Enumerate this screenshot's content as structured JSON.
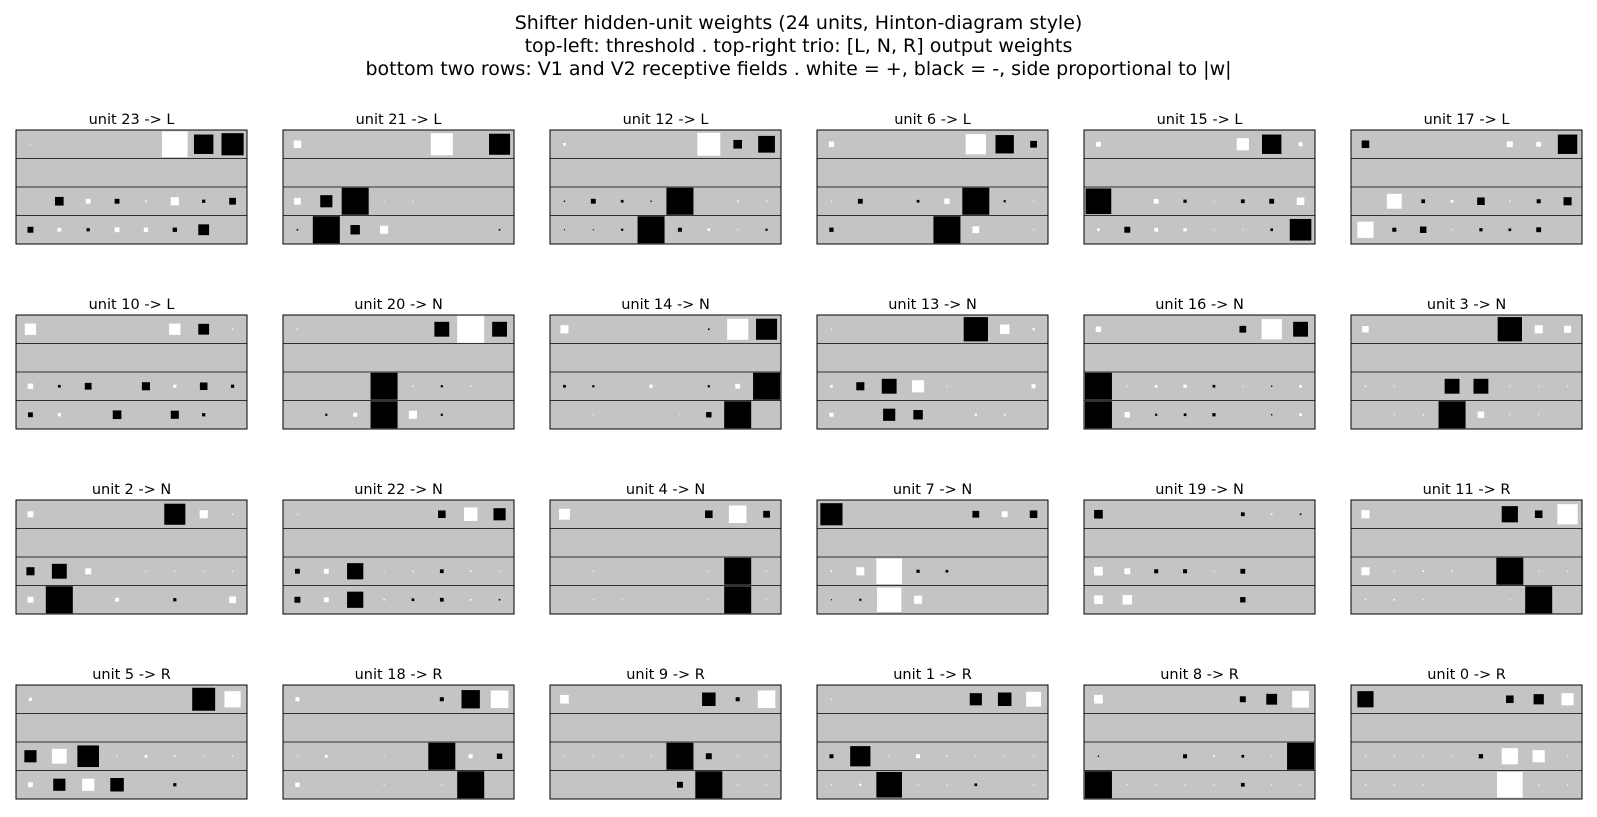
{
  "title_lines": [
    "Shifter hidden-unit weights (24 units, Hinton-diagram style)",
    "top-left: threshold   .   top-right trio: [L, N, R] output weights",
    "bottom two rows: V1 and V2 receptive fields   .   white = +, black = -, side proportional to |w|"
  ],
  "colors": {
    "panel_bg": "#c4c4c4",
    "positive": "#ffffff",
    "negative": "#000000",
    "frame": "#000000"
  },
  "chart_data": {
    "type": "hinton",
    "encoding": "value range -1..1; positive = white square, negative = black square; square side proportional to |w|; cells per row = 8",
    "panels": [
      {
        "title": "unit 23 -> L",
        "threshold": 0.04,
        "outputs": [
          0.95,
          -0.72,
          -0.82
        ],
        "v1": [
          0,
          -0.32,
          0.18,
          -0.18,
          0.06,
          0.3,
          -0.12,
          -0.25
        ],
        "v2": [
          -0.22,
          0.14,
          -0.12,
          0.18,
          0.16,
          -0.16,
          -0.4,
          0
        ]
      },
      {
        "title": "unit 21 -> L",
        "threshold": 0.28,
        "outputs": [
          0.82,
          0,
          -0.78
        ],
        "v1": [
          0.25,
          -0.45,
          -1.0,
          0.04,
          0.04,
          0,
          0,
          0
        ],
        "v2": [
          -0.06,
          -1.0,
          -0.35,
          0.3,
          0,
          0,
          0,
          -0.06
        ]
      },
      {
        "title": "unit 12 -> L",
        "threshold": 0.1,
        "outputs": [
          0.85,
          -0.32,
          -0.62
        ],
        "v1": [
          -0.05,
          -0.18,
          -0.1,
          -0.05,
          -1.0,
          0,
          0.06,
          0.05
        ],
        "v2": [
          -0.04,
          -0.04,
          -0.08,
          -1.0,
          -0.15,
          0.1,
          0.04,
          -0.08
        ]
      },
      {
        "title": "unit 6 -> L",
        "threshold": 0.2,
        "outputs": [
          0.75,
          -0.68,
          -0.25
        ],
        "v1": [
          0.04,
          -0.18,
          0.02,
          -0.1,
          0.2,
          -1.0,
          -0.08,
          0.04
        ],
        "v2": [
          -0.16,
          0,
          0.02,
          0,
          -1.0,
          0.25,
          0.02,
          0.04
        ],
        "v1_gap_after": 4,
        "v2_gap_after": 3
      },
      {
        "title": "unit 15 -> L",
        "threshold": 0.18,
        "outputs": [
          0.45,
          -0.72,
          0.15
        ],
        "v1": [
          -0.95,
          0,
          0.18,
          -0.12,
          0.04,
          -0.14,
          -0.18,
          0.28
        ],
        "v2": [
          0.1,
          -0.22,
          0.14,
          0.12,
          0.04,
          0.04,
          -0.1,
          -0.8
        ]
      },
      {
        "title": "unit 17 -> L",
        "threshold": -0.28,
        "outputs": [
          0.22,
          0.18,
          -0.72
        ],
        "v1": [
          0,
          0.55,
          -0.14,
          0.1,
          -0.28,
          0.05,
          -0.15,
          -0.3
        ],
        "v2": [
          0.6,
          -0.15,
          -0.24,
          0.04,
          -0.12,
          -0.1,
          -0.18,
          0
        ]
      },
      {
        "title": "unit 10 -> L",
        "threshold": 0.42,
        "outputs": [
          0.42,
          -0.4,
          0.05
        ],
        "v1": [
          0.2,
          -0.1,
          -0.25,
          0,
          -0.3,
          0.12,
          -0.28,
          -0.12
        ],
        "v2": [
          -0.18,
          0.12,
          0,
          -0.32,
          0,
          -0.3,
          -0.12,
          0
        ],
        "v2_gap_after": 2
      },
      {
        "title": "unit 20 -> N",
        "threshold": 0.05,
        "outputs": [
          -0.55,
          1.0,
          -0.55
        ],
        "v1": [
          0,
          0,
          0,
          -1.0,
          0.05,
          -0.08,
          0.05,
          0
        ],
        "v2": [
          0,
          -0.08,
          0.15,
          -1.0,
          0.3,
          -0.08,
          0,
          0
        ]
      },
      {
        "title": "unit 14 -> N",
        "threshold": 0.3,
        "outputs": [
          -0.06,
          0.78,
          -0.78
        ],
        "v1": [
          -0.1,
          -0.08,
          0,
          0.12,
          0,
          -0.08,
          0.18,
          -1.0
        ],
        "v2": [
          0,
          0.04,
          0,
          0,
          0.04,
          -0.2,
          -1.0,
          0
        ],
        "v2_gap_after": 1
      },
      {
        "title": "unit 13 -> N",
        "threshold": 0.04,
        "outputs": [
          -0.9,
          0.35,
          0.08
        ],
        "v1": [
          0.1,
          -0.3,
          -0.55,
          0.45,
          0.04,
          0,
          0,
          0.15
        ],
        "v2": [
          0.15,
          0,
          -0.45,
          -0.35,
          0,
          0.08,
          0.06,
          0
        ]
      },
      {
        "title": "unit 16 -> N",
        "threshold": 0.2,
        "outputs": [
          -0.25,
          0.75,
          -0.55
        ],
        "v1": [
          -1.0,
          0.04,
          0.1,
          0.12,
          -0.1,
          0.04,
          -0.05,
          0.1
        ],
        "v2": [
          -1.0,
          0.2,
          -0.08,
          -0.1,
          -0.12,
          0,
          -0.05,
          0.1
        ]
      },
      {
        "title": "unit 3 -> N",
        "threshold": 0.24,
        "outputs": [
          -0.9,
          0.3,
          0.26
        ],
        "v1": [
          0.05,
          0.04,
          0,
          -0.55,
          -0.55,
          0.04,
          0.04,
          0.04
        ],
        "v2": [
          0,
          0.04,
          0.05,
          -1.0,
          0.24,
          0.04,
          0.04,
          0
        ],
        "v1_gap_after": 2
      },
      {
        "title": "unit 2 -> N",
        "threshold": 0.22,
        "outputs": [
          -0.78,
          0.3,
          0.04
        ],
        "v1": [
          -0.3,
          -0.55,
          0.22,
          0,
          0.04,
          0.04,
          0.04,
          0.04
        ],
        "v2": [
          0.22,
          -1.0,
          0,
          0.14,
          0,
          -0.12,
          0,
          0.25
        ],
        "v1_gap_after": 2
      },
      {
        "title": "unit 22 -> N",
        "threshold": 0.04,
        "outputs": [
          -0.28,
          0.5,
          -0.45
        ],
        "v1": [
          -0.18,
          0.18,
          -0.6,
          0.04,
          0.05,
          -0.14,
          0.06,
          0.04
        ],
        "v2": [
          -0.22,
          0.18,
          -0.6,
          0.06,
          -0.1,
          -0.14,
          0.06,
          -0.06
        ]
      },
      {
        "title": "unit 4 -> N",
        "threshold": 0.4,
        "outputs": [
          -0.28,
          0.65,
          -0.25
        ],
        "v1": [
          0,
          0.04,
          0,
          0,
          0,
          0.04,
          -1.0,
          0.04
        ],
        "v2": [
          0,
          0.04,
          0.04,
          0,
          0,
          0.04,
          -1.0,
          0.04
        ],
        "v1_gap_after": 5
      },
      {
        "title": "unit 7 -> N",
        "threshold": -0.82,
        "outputs": [
          -0.25,
          0.22,
          -0.28
        ],
        "v1": [
          0.06,
          0.3,
          0.95,
          -0.12,
          -0.1,
          0,
          0,
          0
        ],
        "v2": [
          -0.04,
          -0.08,
          0.9,
          0.3,
          0,
          0,
          0,
          0
        ],
        "v1_gap_after": 2
      },
      {
        "title": "unit 19 -> N",
        "threshold": -0.32,
        "outputs": [
          -0.14,
          0.06,
          -0.06
        ],
        "v1": [
          0.32,
          0.22,
          -0.15,
          -0.15,
          0.04,
          -0.18,
          0,
          0
        ],
        "v2": [
          0.32,
          0.35,
          0,
          0,
          0,
          -0.2,
          0,
          0
        ],
        "v2_gap_after": 2
      },
      {
        "title": "unit 11 -> R",
        "threshold": 0.3,
        "outputs": [
          -0.6,
          -0.28,
          0.75
        ],
        "v1": [
          0.3,
          0.04,
          0.06,
          0.05,
          0,
          -1.0,
          0.04,
          0.04
        ],
        "v2": [
          0.05,
          0.06,
          0.04,
          0,
          0,
          0.04,
          -1.0,
          0
        ]
      },
      {
        "title": "unit 5 -> R",
        "threshold": 0.12,
        "outputs": [
          0,
          -0.85,
          0.6
        ],
        "v1": [
          -0.45,
          0.55,
          -0.8,
          0.04,
          0.1,
          0.06,
          0.04,
          0.04
        ],
        "v2": [
          0.18,
          -0.45,
          0.45,
          -0.5,
          0,
          -0.12,
          0,
          0
        ]
      },
      {
        "title": "unit 18 -> R",
        "threshold": 0.15,
        "outputs": [
          -0.15,
          -0.68,
          0.65
        ],
        "v1": [
          0.04,
          0.1,
          0,
          0.04,
          0,
          -1.0,
          0.15,
          -0.2
        ],
        "v2": [
          0.16,
          0,
          0,
          0.04,
          0,
          0.04,
          -1.0,
          0
        ]
      },
      {
        "title": "unit 9 -> R",
        "threshold": 0.32,
        "outputs": [
          -0.5,
          -0.15,
          0.65
        ],
        "v1": [
          0.04,
          0.04,
          0.04,
          0.04,
          -1.0,
          -0.22,
          0.04,
          0.04
        ],
        "v2": [
          0,
          0,
          0,
          0,
          -0.22,
          -1.0,
          0.04,
          0.04
        ],
        "v1_gap_after": 4
      },
      {
        "title": "unit 1 -> R",
        "threshold": 0.04,
        "outputs": [
          -0.45,
          -0.5,
          0.55
        ],
        "v1": [
          -0.15,
          -0.75,
          0.04,
          0.15,
          0.05,
          0.04,
          0.04,
          0.04
        ],
        "v2": [
          0.04,
          0.08,
          -0.95,
          0.04,
          0.04,
          -0.1,
          0,
          0.04
        ],
        "v1_gap_after": 1
      },
      {
        "title": "unit 8 -> R",
        "threshold": 0.32,
        "outputs": [
          -0.22,
          -0.4,
          0.62
        ],
        "v1": [
          -0.05,
          0,
          0,
          -0.15,
          0.06,
          -0.1,
          0.04,
          -1.0
        ],
        "v2": [
          -1.0,
          0.04,
          0.04,
          0.04,
          0.04,
          -0.14,
          0.04,
          0.04
        ],
        "v1_gap_after": 2,
        "v2_gap_after": 5
      },
      {
        "title": "unit 0 -> R",
        "threshold": -0.6,
        "outputs": [
          -0.28,
          -0.38,
          0.45
        ],
        "v1": [
          0.04,
          0.04,
          0.04,
          0.04,
          -0.16,
          0.6,
          0.45,
          0.04
        ],
        "v2": [
          0.04,
          0.04,
          0.04,
          0,
          0,
          0.95,
          0.04,
          0.04
        ]
      }
    ]
  }
}
